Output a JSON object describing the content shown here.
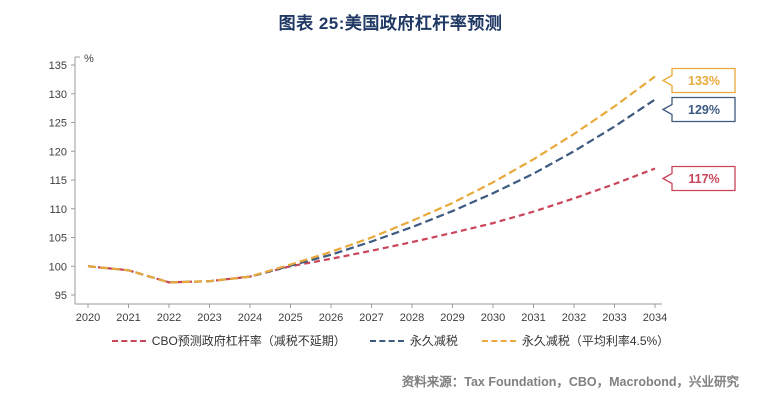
{
  "page": {
    "title": "图表 25:美国政府杠杆率预测",
    "source_note": "资料来源：Tax Foundation，CBO，Macrobond，兴业研究"
  },
  "colors": {
    "title": "#1F3864",
    "axis": "#9B9B9B",
    "tick_text": "#404040",
    "red": "#C9455A",
    "navy": "#3D5A80",
    "gold": "#E9A93B",
    "source_text": "#808080"
  },
  "chart_data": {
    "type": "line",
    "title": "图表 25:美国政府杠杆率预测",
    "ylabel": "%",
    "xlabel": "",
    "ylim": [
      95,
      135
    ],
    "yticks": [
      95,
      100,
      105,
      110,
      115,
      120,
      125,
      130,
      135
    ],
    "grid": false,
    "legend_position": "bottom",
    "x": [
      2020,
      2021,
      2022,
      2023,
      2024,
      2025,
      2026,
      2027,
      2028,
      2029,
      2030,
      2031,
      2032,
      2033,
      2034
    ],
    "series": [
      {
        "name": "CBO预测政府杠杆率（减税不延期）",
        "color_key": "red",
        "dash": "6 4",
        "end_label": "117%",
        "values": [
          100,
          99.3,
          97.2,
          97.4,
          98.2,
          100,
          101.3,
          102.7,
          104.2,
          105.8,
          107.5,
          109.5,
          111.8,
          114.3,
          117
        ]
      },
      {
        "name": "永久减税",
        "color_key": "navy",
        "dash": "8 4",
        "end_label": "129%",
        "values": [
          100,
          99.3,
          97.2,
          97.4,
          98.2,
          100.1,
          102,
          104.3,
          106.8,
          109.6,
          112.7,
          116.1,
          120,
          124.3,
          129
        ]
      },
      {
        "name": "永久减税（平均利率4.5%）",
        "color_key": "gold",
        "dash": "8 4",
        "end_label": "133%",
        "values": [
          100,
          99.3,
          97.2,
          97.4,
          98.2,
          100.3,
          102.5,
          105,
          107.9,
          111,
          114.6,
          118.6,
          123,
          127.8,
          133
        ]
      }
    ]
  }
}
